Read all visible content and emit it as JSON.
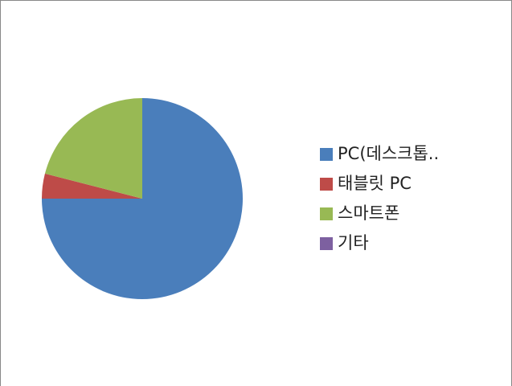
{
  "chart_data": {
    "type": "pie",
    "categories": [
      "PC(데스크톱..",
      "태블릿 PC",
      "스마트폰",
      "기타"
    ],
    "values": [
      75,
      4,
      21,
      0
    ],
    "colors": [
      "#4a7ebb",
      "#be4b48",
      "#98b954",
      "#7d60a0"
    ],
    "legend": "right"
  }
}
